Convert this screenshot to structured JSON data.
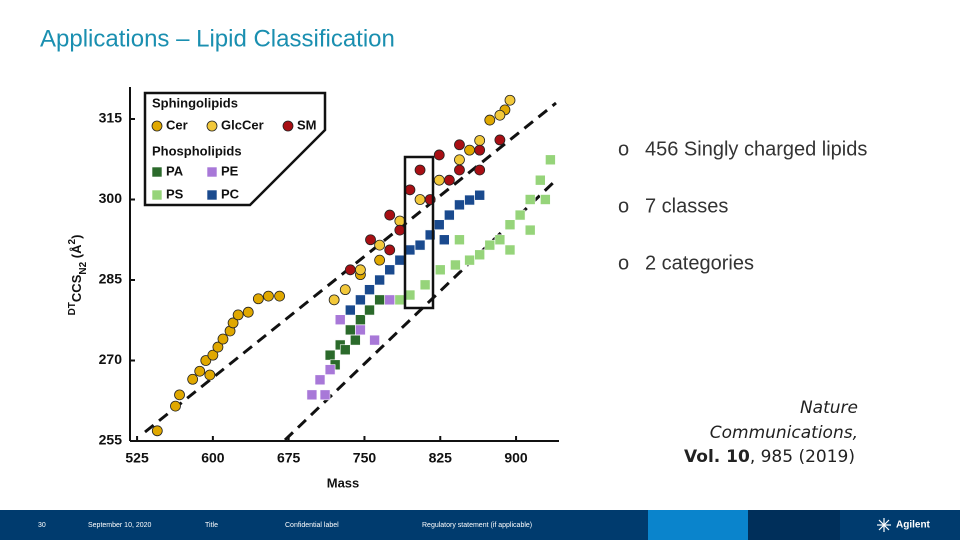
{
  "title": "Applications – Lipid Classification",
  "chart_data": {
    "type": "scatter",
    "xlabel": "Mass",
    "ylabel_parts": [
      "DT",
      "CCS",
      "N2",
      " (Å",
      "2",
      ")"
    ],
    "xlim": [
      518,
      942
    ],
    "xticks": [
      525,
      600,
      675,
      750,
      825,
      900
    ],
    "ylim": [
      255,
      321
    ],
    "yticks": [
      255,
      270,
      285,
      300,
      315
    ],
    "legend_group_titles": [
      "Sphingolipids",
      "Phospholipids"
    ],
    "series": [
      {
        "name": "Cer",
        "color": "#e0a800",
        "marker": "circle",
        "x": [
          545,
          563,
          567,
          580,
          587,
          593,
          597,
          600,
          605,
          610,
          617,
          620,
          625,
          635,
          645,
          655,
          666,
          746,
          765,
          854,
          874,
          889
        ],
        "y": [
          256.9,
          261.5,
          263.6,
          266.5,
          268,
          270,
          267.3,
          271,
          272.5,
          274,
          275.5,
          277,
          278.5,
          279,
          281.5,
          282,
          282,
          286,
          288.7,
          309.2,
          314.8,
          316.7
        ]
      },
      {
        "name": "GlcCer",
        "color": "#f2c83a",
        "marker": "circle",
        "x": [
          894,
          884,
          864,
          844,
          824,
          805,
          785,
          765,
          746,
          731,
          720
        ],
        "y": [
          318.5,
          315.7,
          311,
          307.4,
          303.6,
          300,
          296,
          291.5,
          286.9,
          283.2,
          281.3
        ]
      },
      {
        "name": "SM",
        "color": "#a80f14",
        "marker": "circle",
        "x": [
          736,
          756,
          775,
          795,
          805,
          824,
          844,
          864,
          884,
          815,
          834,
          785,
          775,
          844,
          864
        ],
        "y": [
          286.9,
          292.5,
          297.1,
          301.8,
          305.5,
          308.3,
          310.2,
          309.2,
          311.1,
          300,
          303.6,
          294.3,
          290.6,
          305.5,
          305.5
        ]
      },
      {
        "name": "PA",
        "color": "#2b6a2b",
        "marker": "square",
        "x": [
          716,
          726,
          736,
          746,
          755,
          765,
          721,
          741,
          731
        ],
        "y": [
          271,
          272.9,
          275.7,
          277.6,
          279.4,
          281.3,
          269.2,
          273.8,
          272
        ]
      },
      {
        "name": "PE",
        "color": "#a878d8",
        "marker": "square",
        "x": [
          698,
          711,
          760,
          726,
          746,
          716,
          775,
          706
        ],
        "y": [
          263.6,
          263.6,
          273.8,
          277.6,
          275.7,
          268.3,
          281.3,
          266.4
        ]
      },
      {
        "name": "PS",
        "color": "#96d47a",
        "marker": "square",
        "x": [
          934,
          924,
          914,
          904,
          894,
          884,
          874,
          864,
          854,
          840,
          825,
          810,
          795,
          785,
          914,
          894,
          844,
          929
        ],
        "y": [
          307.4,
          303.6,
          300,
          297.1,
          295.3,
          292.5,
          291.5,
          289.7,
          288.7,
          287.8,
          286.9,
          284.1,
          282.2,
          281.3,
          294.3,
          290.6,
          292.5,
          300
        ]
      },
      {
        "name": "PC",
        "color": "#1a4a8e",
        "marker": "square",
        "x": [
          755,
          765,
          775,
          785,
          795,
          805,
          815,
          824,
          834,
          844,
          854,
          864,
          736,
          746,
          829
        ],
        "y": [
          283.2,
          285,
          286.9,
          288.7,
          290.6,
          291.5,
          293.4,
          295.3,
          297.1,
          299,
          299.9,
          300.8,
          279.4,
          281.3,
          292.5
        ]
      }
    ]
  },
  "bullets": {
    "marker": "o",
    "items": [
      "456 Singly charged lipids",
      "7 classes",
      "2 categories"
    ]
  },
  "citation": {
    "journal_line1": "Nature",
    "journal_line2": "Communications,",
    "volume": "Vol. 10",
    "rest": ", 985 (2019)"
  },
  "footer": {
    "page": "30",
    "date": "September 10, 2020",
    "title": "Title",
    "confidential": "Confidential label",
    "regulatory": "Regulatory statement (if applicable)",
    "logo": "Agilent"
  }
}
